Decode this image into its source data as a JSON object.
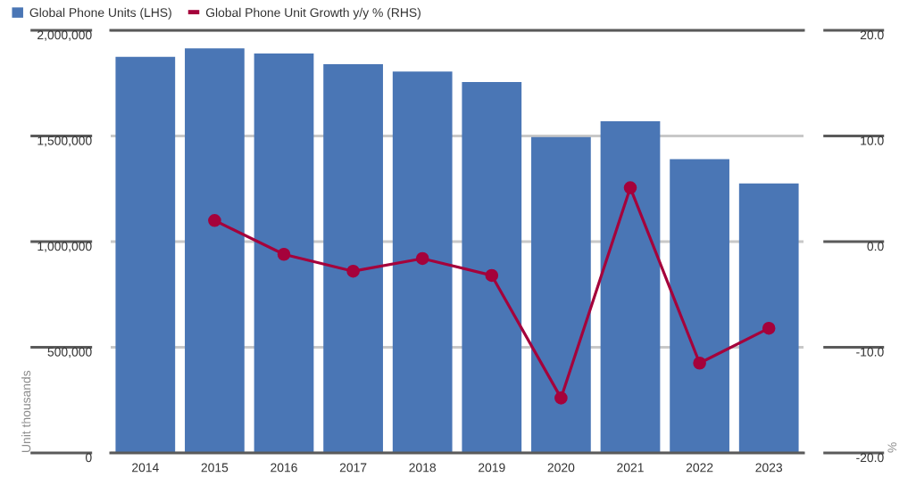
{
  "chart_data": {
    "type": "bar",
    "categories": [
      "2014",
      "2015",
      "2016",
      "2017",
      "2018",
      "2019",
      "2020",
      "2021",
      "2022",
      "2023"
    ],
    "series": [
      {
        "name": "Global Phone Units (LHS)",
        "axis": "y",
        "color": "#4a76b5",
        "values": [
          1875000,
          1915000,
          1890000,
          1840000,
          1805000,
          1755000,
          1495000,
          1570000,
          1390000,
          1275000
        ]
      },
      {
        "name": "Global Phone Unit Growth y/y % (RHS)",
        "type": "line",
        "axis": "y2",
        "color": "#a5023b",
        "values": [
          null,
          2.0,
          -1.2,
          -2.8,
          -1.6,
          -3.2,
          -14.8,
          5.1,
          -11.5,
          -8.2
        ]
      }
    ],
    "ylabel": "Unit thousands",
    "y2label": "%",
    "ylim": [
      0,
      2000000
    ],
    "yticks": [
      0,
      {
        "value": 500000,
        "label": "500,000"
      },
      {
        "value": 1000000,
        "label": "1,000,000"
      },
      {
        "value": 1500000,
        "label": "1,500,000"
      },
      {
        "value": 2000000,
        "label": "2,000,000"
      }
    ],
    "y2lim": [
      -20,
      20
    ],
    "y2ticks": [
      {
        "value": -20,
        "label": "-20.0"
      },
      {
        "value": -10,
        "label": "-10.0"
      },
      {
        "value": 0,
        "label": "0.0"
      },
      {
        "value": 10,
        "label": "10.0"
      },
      {
        "value": 20,
        "label": "20.0"
      }
    ],
    "grid": "y",
    "legend": "top left",
    "marker": "circle",
    "line_style": "solid"
  }
}
